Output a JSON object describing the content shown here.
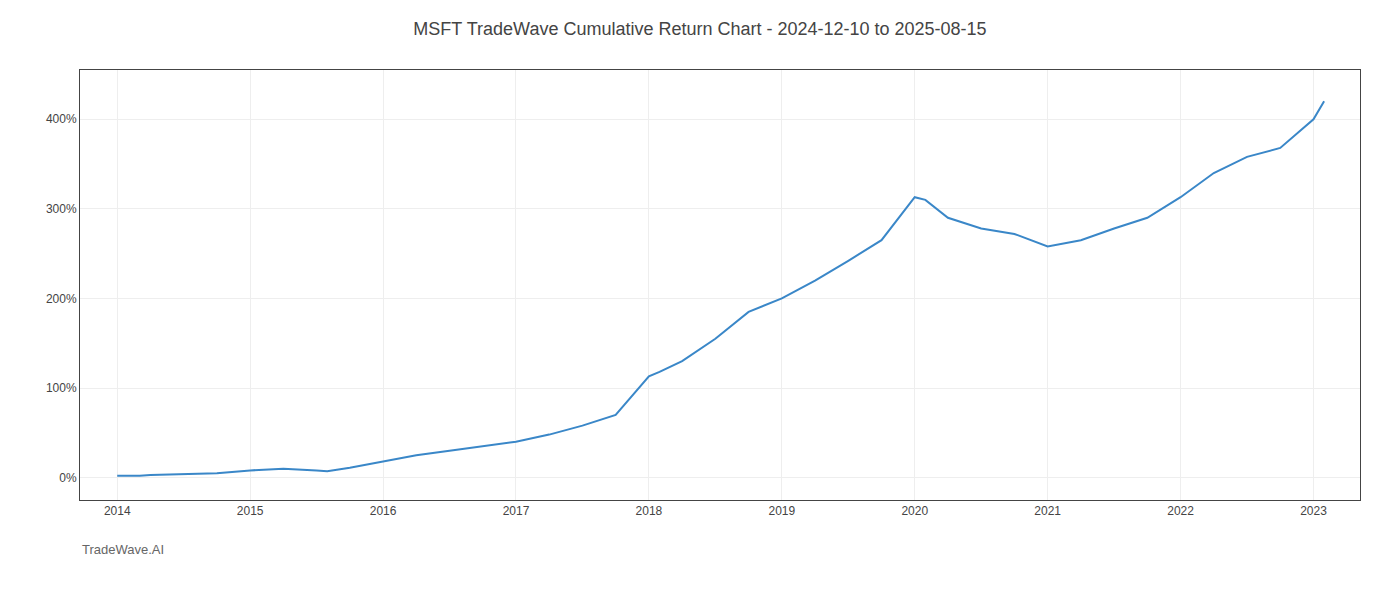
{
  "chart_data": {
    "type": "line",
    "title": "MSFT TradeWave Cumulative Return Chart - 2024-12-10 to 2025-08-15",
    "annotations": [
      "TradeWave.AI"
    ],
    "x": [
      2014.0,
      2014.08,
      2014.17,
      2014.25,
      2014.5,
      2014.75,
      2015.0,
      2015.25,
      2015.5,
      2015.58,
      2015.75,
      2016.0,
      2016.25,
      2016.5,
      2016.75,
      2017.0,
      2017.25,
      2017.5,
      2017.75,
      2018.0,
      2018.08,
      2018.25,
      2018.5,
      2018.75,
      2019.0,
      2019.25,
      2019.5,
      2019.75,
      2020.0,
      2020.08,
      2020.25,
      2020.5,
      2020.75,
      2021.0,
      2021.25,
      2021.5,
      2021.75,
      2022.0,
      2022.25,
      2022.5,
      2022.75,
      2023.0,
      2023.08
    ],
    "values": [
      2,
      2,
      2,
      3,
      4,
      5,
      8,
      10,
      8,
      7,
      11,
      18,
      25,
      30,
      35,
      40,
      48,
      58,
      70,
      113,
      118,
      130,
      155,
      185,
      200,
      220,
      242,
      265,
      313,
      310,
      290,
      278,
      272,
      258,
      265,
      278,
      290,
      313,
      340,
      358,
      368,
      400,
      420
    ],
    "color": "#3a87c8",
    "xlim": [
      2013.72,
      2023.35
    ],
    "ylim": [
      -25,
      455
    ],
    "xticks": [
      2014,
      2015,
      2016,
      2017,
      2018,
      2019,
      2020,
      2021,
      2022,
      2023
    ],
    "yticks": [
      {
        "value": 0,
        "label": "0%"
      },
      {
        "value": 100,
        "label": "100%"
      },
      {
        "value": 200,
        "label": "200%"
      },
      {
        "value": 300,
        "label": "300%"
      },
      {
        "value": 400,
        "label": "400%"
      }
    ],
    "grid": true
  }
}
